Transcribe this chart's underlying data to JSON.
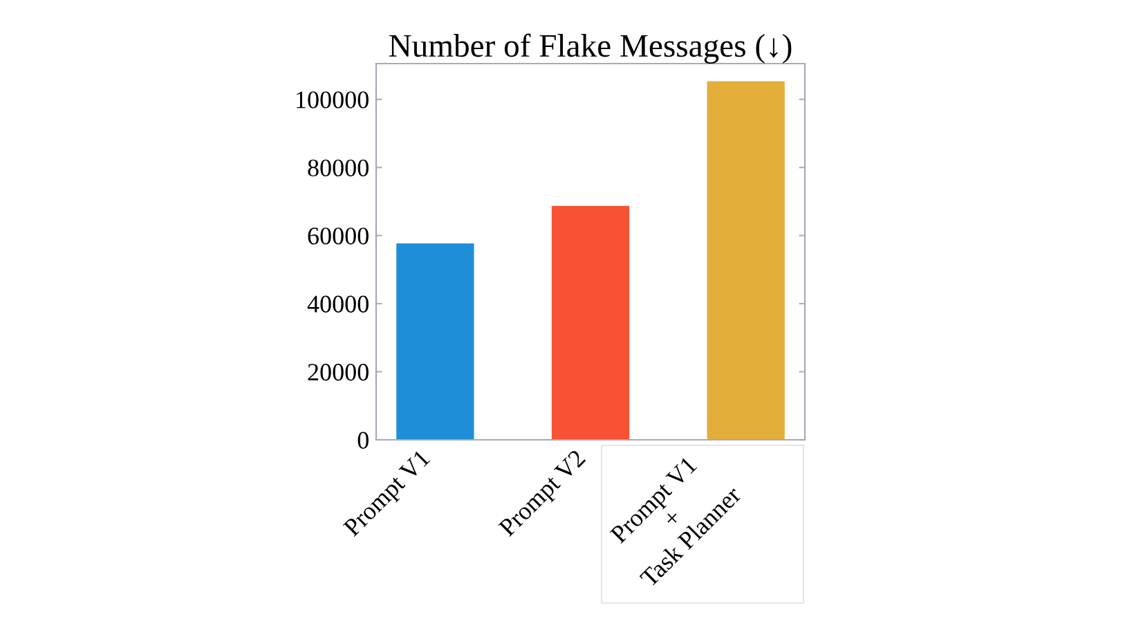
{
  "chart_data": {
    "type": "bar",
    "title": "Number of Flake Messages (↓)",
    "categories": [
      "Prompt V1",
      "Prompt V2",
      "Prompt V1\n+\nTask Planner"
    ],
    "values": [
      57700,
      68700,
      105300
    ],
    "colors": [
      "#1f8ed8",
      "#f65233",
      "#e4ae3a"
    ],
    "ylim": [
      0,
      110500
    ],
    "yticks": [
      0,
      20000,
      40000,
      60000,
      80000,
      100000
    ],
    "grid": false
  }
}
